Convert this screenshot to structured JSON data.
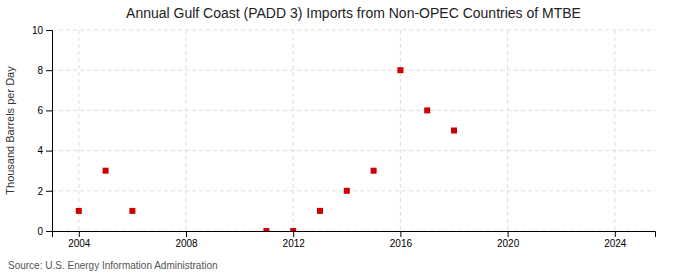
{
  "chart_data": {
    "type": "scatter",
    "title": "Annual Gulf Coast (PADD 3) Imports from Non-OPEC Countries of MTBE",
    "ylabel": "Thousand Barrels per Day",
    "annotations": [
      "Source: U.S. Energy Information Administration"
    ],
    "x": [
      2004,
      2005,
      2006,
      2011,
      2012,
      2013,
      2014,
      2015,
      2016,
      2017,
      2018
    ],
    "values": [
      1.0,
      3.0,
      1.0,
      0.0,
      0.0,
      1.0,
      2.0,
      3.0,
      8.0,
      6.0,
      5.0
    ],
    "color": "#cc0000",
    "marker": "square",
    "xlim": [
      2003.0,
      2025.5
    ],
    "ylim": [
      0,
      10
    ],
    "xticks": [
      2004,
      2008,
      2012,
      2016,
      2020,
      2024
    ],
    "yticks": [
      0,
      2,
      4,
      6,
      8,
      10
    ],
    "grid": true
  }
}
